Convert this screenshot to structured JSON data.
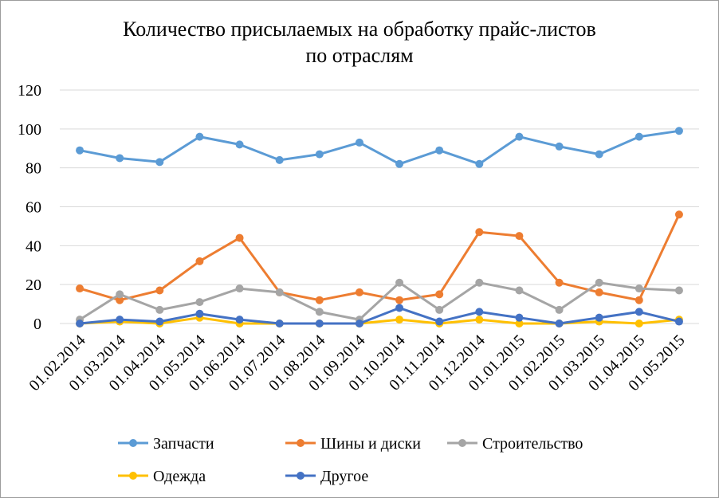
{
  "chart_data": {
    "type": "line",
    "title_line1": "Количество присылаемых на обработку прайс-листов",
    "title_line2": "по отраслям",
    "xlabel": "",
    "ylabel": "",
    "ylim": [
      0,
      120
    ],
    "y_ticks": [
      "0",
      "20",
      "40",
      "60",
      "80",
      "100",
      "120"
    ],
    "grid": true,
    "legend_position": "bottom",
    "categories": [
      "01.02.2014",
      "01.03.2014",
      "01.04.2014",
      "01.05.2014",
      "01.06.2014",
      "01.07.2014",
      "01.08.2014",
      "01.09.2014",
      "01.10.2014",
      "01.11.2014",
      "01.12.2014",
      "01.01.2015",
      "01.02.2015",
      "01.03.2015",
      "01.04.2015",
      "01.05.2015"
    ],
    "series": [
      {
        "name": "Запчасти",
        "color": "#5b9bd5",
        "values": [
          89,
          85,
          83,
          96,
          92,
          84,
          87,
          93,
          82,
          89,
          82,
          96,
          91,
          87,
          96,
          99
        ]
      },
      {
        "name": "Шины и диски",
        "color": "#ed7d31",
        "values": [
          18,
          12,
          17,
          32,
          44,
          16,
          12,
          16,
          12,
          15,
          47,
          45,
          21,
          16,
          12,
          56
        ]
      },
      {
        "name": "Строительство",
        "color": "#a5a5a5",
        "values": [
          2,
          15,
          7,
          11,
          18,
          16,
          6,
          2,
          21,
          7,
          21,
          17,
          7,
          21,
          18,
          17
        ]
      },
      {
        "name": "Одежда",
        "color": "#ffc000",
        "values": [
          0,
          1,
          0,
          3,
          0,
          0,
          0,
          0,
          2,
          0,
          2,
          0,
          0,
          1,
          0,
          2
        ]
      },
      {
        "name": "Другое",
        "color": "#4472c4",
        "values": [
          0,
          2,
          1,
          5,
          2,
          0,
          0,
          0,
          8,
          1,
          6,
          3,
          0,
          3,
          6,
          1
        ]
      }
    ]
  }
}
